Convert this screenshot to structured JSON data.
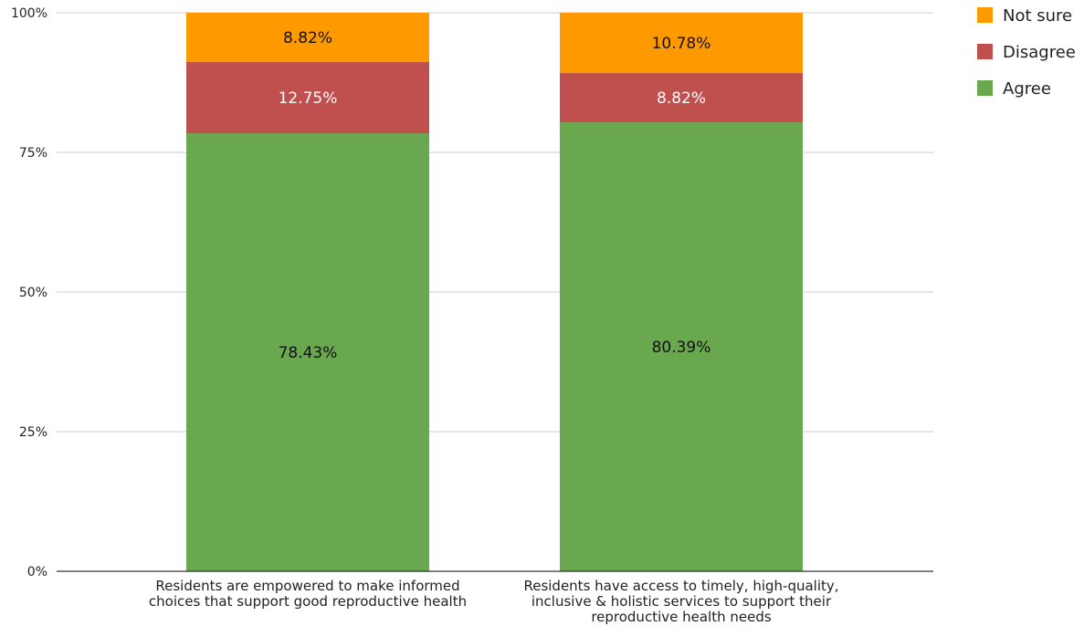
{
  "chart_data": {
    "type": "bar",
    "stacked": true,
    "categories": [
      [
        "Residents are empowered to make informed",
        "choices that support good reproductive health"
      ],
      [
        "Residents have access to timely, high-quality,",
        "inclusive & holistic services to support their",
        "reproductive health needs"
      ]
    ],
    "series": [
      {
        "name": "Agree",
        "color": "#6aa84f",
        "label_color": "#111111",
        "values": [
          78.43,
          80.39
        ],
        "labels": [
          "78.43%",
          "80.39%"
        ]
      },
      {
        "name": "Disagree",
        "color": "#c0504d",
        "label_color": "#ffffff",
        "values": [
          12.75,
          8.82
        ],
        "labels": [
          "12.75%",
          "8.82%"
        ]
      },
      {
        "name": "Not sure",
        "color": "#ff9900",
        "label_color": "#111111",
        "values": [
          8.82,
          10.78
        ],
        "labels": [
          "8.82%",
          "10.78%"
        ]
      }
    ],
    "ylim": [
      0,
      100
    ],
    "yticks": [
      0,
      25,
      50,
      75,
      100
    ],
    "ytick_labels": [
      "0%",
      "25%",
      "50%",
      "75%",
      "100%"
    ],
    "legend": {
      "position": "top-right",
      "order": [
        "Not sure",
        "Disagree",
        "Agree"
      ]
    },
    "grid": true
  }
}
